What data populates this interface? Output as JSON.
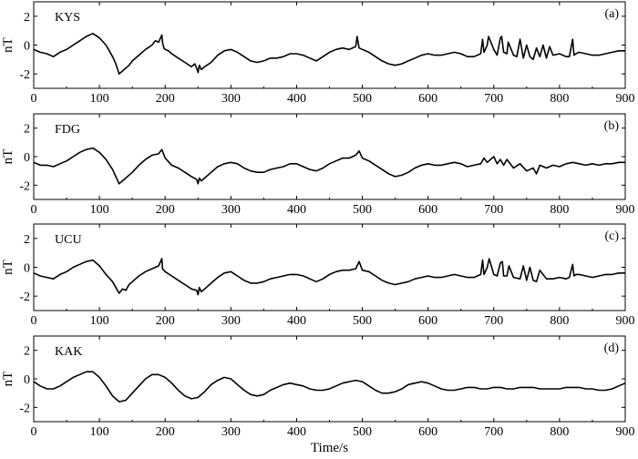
{
  "chart_data": [
    {
      "type": "line",
      "panel_letter": "(a)",
      "station": "KYS",
      "ylabel": "nT",
      "xlabel": "",
      "xlim": [
        0,
        900
      ],
      "ylim": [
        -3,
        3
      ],
      "xticks": [
        "0",
        "100",
        "200",
        "300",
        "400",
        "500",
        "600",
        "700",
        "800",
        "900"
      ],
      "yticks": [
        "2",
        "0",
        "-2"
      ],
      "series": [
        {
          "x": [
            0,
            10,
            20,
            30,
            40,
            50,
            60,
            70,
            80,
            90,
            100,
            110,
            120,
            125,
            130,
            135,
            140,
            145,
            150,
            160,
            170,
            180,
            185,
            190,
            195,
            196,
            198,
            200,
            205,
            210,
            220,
            230,
            240,
            245,
            248,
            250,
            252,
            255,
            260,
            270,
            280,
            290,
            300,
            310,
            320,
            330,
            340,
            350,
            360,
            370,
            380,
            390,
            400,
            410,
            420,
            430,
            440,
            450,
            460,
            470,
            480,
            490,
            492,
            495,
            500,
            510,
            520,
            530,
            540,
            550,
            560,
            570,
            580,
            590,
            600,
            610,
            620,
            630,
            640,
            650,
            660,
            670,
            680,
            683,
            685,
            690,
            692,
            700,
            705,
            710,
            712,
            715,
            720,
            722,
            730,
            735,
            740,
            745,
            750,
            755,
            760,
            765,
            770,
            775,
            780,
            785,
            790,
            800,
            810,
            815,
            820,
            822,
            825,
            830,
            840,
            850,
            860,
            870,
            880,
            890,
            900
          ],
          "y": [
            -0.3,
            -0.5,
            -0.6,
            -0.8,
            -0.5,
            -0.3,
            0.0,
            0.3,
            0.6,
            0.8,
            0.5,
            0.0,
            -0.8,
            -1.3,
            -2.0,
            -1.8,
            -1.6,
            -1.4,
            -1.1,
            -0.7,
            -0.3,
            0.0,
            0.3,
            0.2,
            0.7,
            0.2,
            -0.2,
            -0.3,
            -0.4,
            -0.6,
            -0.9,
            -1.2,
            -1.5,
            -1.3,
            -1.6,
            -1.9,
            -1.4,
            -1.7,
            -1.5,
            -1.2,
            -0.7,
            -0.4,
            -0.3,
            -0.5,
            -0.8,
            -1.1,
            -1.2,
            -1.1,
            -0.9,
            -0.9,
            -0.8,
            -0.6,
            -0.6,
            -0.7,
            -0.9,
            -1.1,
            -0.8,
            -0.5,
            -0.3,
            -0.2,
            -0.3,
            -0.1,
            0.6,
            -0.2,
            -0.3,
            -0.5,
            -0.8,
            -1.1,
            -1.3,
            -1.4,
            -1.3,
            -1.1,
            -0.9,
            -0.7,
            -0.6,
            -0.7,
            -0.7,
            -0.6,
            -0.5,
            -0.6,
            -0.8,
            -0.8,
            -0.6,
            0.4,
            -0.5,
            0.0,
            0.6,
            -0.3,
            -0.7,
            0.5,
            0.6,
            -0.5,
            -0.6,
            0.2,
            -0.7,
            -0.8,
            0.4,
            -0.9,
            0.0,
            -0.8,
            -1.0,
            -0.2,
            -0.8,
            0.0,
            -0.9,
            -0.1,
            -0.7,
            -0.6,
            -0.8,
            -0.8,
            0.4,
            -0.7,
            -0.6,
            -0.5,
            -0.6,
            -0.7,
            -0.7,
            -0.6,
            -0.5,
            -0.4,
            -0.4
          ]
        }
      ]
    },
    {
      "type": "line",
      "panel_letter": "(b)",
      "station": "FDG",
      "ylabel": "nT",
      "xlabel": "",
      "xlim": [
        0,
        900
      ],
      "ylim": [
        -3,
        3
      ],
      "xticks": [
        "0",
        "100",
        "200",
        "300",
        "400",
        "500",
        "600",
        "700",
        "800",
        "900"
      ],
      "yticks": [
        "2",
        "0",
        "-2"
      ],
      "series": [
        {
          "x": [
            0,
            10,
            20,
            30,
            40,
            50,
            60,
            70,
            80,
            90,
            100,
            110,
            120,
            125,
            130,
            135,
            140,
            150,
            160,
            170,
            180,
            190,
            195,
            200,
            210,
            220,
            230,
            240,
            248,
            250,
            252,
            255,
            260,
            270,
            280,
            290,
            300,
            310,
            320,
            330,
            340,
            350,
            360,
            370,
            380,
            390,
            400,
            410,
            420,
            430,
            440,
            450,
            460,
            470,
            480,
            490,
            495,
            500,
            510,
            520,
            530,
            540,
            550,
            560,
            570,
            580,
            590,
            600,
            610,
            620,
            630,
            640,
            650,
            660,
            670,
            680,
            685,
            690,
            700,
            705,
            710,
            715,
            720,
            730,
            740,
            750,
            760,
            765,
            770,
            780,
            790,
            800,
            810,
            820,
            830,
            840,
            850,
            860,
            870,
            880,
            890,
            900
          ],
          "y": [
            -0.4,
            -0.6,
            -0.6,
            -0.7,
            -0.5,
            -0.3,
            0.0,
            0.3,
            0.5,
            0.6,
            0.3,
            -0.2,
            -0.9,
            -1.4,
            -1.9,
            -1.7,
            -1.5,
            -1.1,
            -0.6,
            -0.2,
            0.1,
            0.2,
            0.5,
            -0.1,
            -0.6,
            -0.8,
            -1.1,
            -1.4,
            -1.6,
            -1.9,
            -1.5,
            -1.7,
            -1.5,
            -1.1,
            -0.7,
            -0.5,
            -0.4,
            -0.5,
            -0.8,
            -1.0,
            -1.1,
            -1.1,
            -0.9,
            -0.8,
            -0.7,
            -0.5,
            -0.5,
            -0.7,
            -0.9,
            -1.0,
            -0.8,
            -0.5,
            -0.3,
            -0.1,
            -0.1,
            0.1,
            0.4,
            -0.1,
            -0.3,
            -0.6,
            -0.9,
            -1.2,
            -1.4,
            -1.3,
            -1.1,
            -0.8,
            -0.6,
            -0.5,
            -0.6,
            -0.6,
            -0.5,
            -0.4,
            -0.5,
            -0.7,
            -0.6,
            -0.5,
            -0.1,
            -0.4,
            0.0,
            -0.5,
            -0.2,
            -0.6,
            -0.2,
            -0.8,
            -0.5,
            -1.0,
            -0.8,
            -1.2,
            -0.6,
            -0.8,
            -0.6,
            -0.7,
            -0.5,
            -0.4,
            -0.5,
            -0.6,
            -0.5,
            -0.6,
            -0.5,
            -0.5,
            -0.4,
            -0.4
          ]
        }
      ]
    },
    {
      "type": "line",
      "panel_letter": "(c)",
      "station": "UCU",
      "ylabel": "nT",
      "xlabel": "",
      "xlim": [
        0,
        900
      ],
      "ylim": [
        -3,
        3
      ],
      "xticks": [
        "0",
        "100",
        "200",
        "300",
        "400",
        "500",
        "600",
        "700",
        "800",
        "900"
      ],
      "yticks": [
        "2",
        "0",
        "-2"
      ],
      "series": [
        {
          "x": [
            0,
            10,
            20,
            30,
            40,
            50,
            60,
            70,
            80,
            90,
            100,
            110,
            120,
            125,
            130,
            135,
            140,
            145,
            150,
            160,
            170,
            180,
            190,
            195,
            196,
            200,
            210,
            220,
            230,
            240,
            248,
            250,
            252,
            255,
            260,
            270,
            280,
            290,
            300,
            310,
            320,
            330,
            340,
            350,
            360,
            370,
            380,
            390,
            400,
            410,
            420,
            430,
            440,
            450,
            460,
            470,
            480,
            490,
            495,
            500,
            510,
            520,
            530,
            540,
            550,
            560,
            570,
            580,
            590,
            600,
            610,
            620,
            630,
            640,
            650,
            660,
            670,
            680,
            683,
            685,
            690,
            693,
            700,
            705,
            710,
            713,
            715,
            720,
            723,
            730,
            740,
            745,
            750,
            755,
            760,
            765,
            770,
            780,
            790,
            800,
            810,
            815,
            820,
            822,
            825,
            830,
            840,
            850,
            860,
            870,
            880,
            890,
            900
          ],
          "y": [
            -0.4,
            -0.6,
            -0.7,
            -0.8,
            -0.5,
            -0.3,
            0.0,
            0.2,
            0.4,
            0.5,
            0.1,
            -0.5,
            -1.0,
            -1.4,
            -1.8,
            -1.5,
            -1.6,
            -1.2,
            -1.0,
            -0.6,
            -0.3,
            -0.1,
            0.1,
            0.6,
            -0.1,
            -0.3,
            -0.6,
            -0.9,
            -1.2,
            -1.5,
            -1.6,
            -1.9,
            -1.4,
            -1.7,
            -1.5,
            -1.1,
            -0.7,
            -0.4,
            -0.3,
            -0.6,
            -0.9,
            -1.1,
            -1.1,
            -1.0,
            -0.8,
            -0.7,
            -0.6,
            -0.5,
            -0.5,
            -0.6,
            -0.8,
            -1.0,
            -0.8,
            -0.5,
            -0.3,
            -0.2,
            -0.2,
            -0.1,
            0.4,
            -0.2,
            -0.3,
            -0.6,
            -0.9,
            -1.1,
            -1.2,
            -1.1,
            -1.0,
            -0.8,
            -0.7,
            -0.6,
            -0.7,
            -0.7,
            -0.6,
            -0.5,
            -0.6,
            -0.7,
            -0.7,
            -0.5,
            0.5,
            -0.5,
            0.0,
            0.6,
            -0.5,
            -0.6,
            0.3,
            0.4,
            -0.6,
            -0.6,
            0.1,
            -0.7,
            -0.8,
            0.1,
            -0.9,
            0.0,
            -0.9,
            -1.0,
            -0.2,
            -0.8,
            -0.8,
            -0.7,
            -0.8,
            -0.7,
            0.2,
            -0.6,
            -0.5,
            -0.5,
            -0.6,
            -0.7,
            -0.6,
            -0.5,
            -0.5,
            -0.4,
            -0.4
          ]
        }
      ]
    },
    {
      "type": "line",
      "panel_letter": "(d)",
      "station": "KAK",
      "ylabel": "nT",
      "xlabel": "Time/s",
      "xlim": [
        0,
        900
      ],
      "ylim": [
        -3,
        3
      ],
      "xticks": [
        "0",
        "100",
        "200",
        "300",
        "400",
        "500",
        "600",
        "700",
        "800",
        "900"
      ],
      "yticks": [
        "2",
        "0",
        "-2"
      ],
      "series": [
        {
          "x": [
            0,
            10,
            20,
            30,
            40,
            50,
            60,
            70,
            80,
            90,
            100,
            110,
            120,
            130,
            140,
            150,
            160,
            170,
            180,
            190,
            200,
            210,
            220,
            230,
            240,
            250,
            260,
            270,
            280,
            290,
            300,
            310,
            320,
            330,
            340,
            350,
            360,
            370,
            380,
            390,
            400,
            410,
            420,
            430,
            440,
            450,
            460,
            470,
            480,
            490,
            500,
            510,
            520,
            530,
            540,
            550,
            560,
            570,
            580,
            590,
            600,
            610,
            620,
            630,
            640,
            650,
            660,
            670,
            680,
            690,
            700,
            710,
            720,
            730,
            740,
            750,
            760,
            770,
            780,
            790,
            800,
            810,
            820,
            830,
            840,
            850,
            860,
            870,
            880,
            890,
            900
          ],
          "y": [
            -0.2,
            -0.5,
            -0.7,
            -0.7,
            -0.5,
            -0.2,
            0.1,
            0.3,
            0.5,
            0.5,
            0.1,
            -0.5,
            -1.2,
            -1.6,
            -1.5,
            -1.0,
            -0.5,
            0.0,
            0.3,
            0.3,
            0.1,
            -0.3,
            -0.8,
            -1.2,
            -1.4,
            -1.3,
            -0.9,
            -0.4,
            -0.1,
            0.1,
            0.0,
            -0.4,
            -0.8,
            -1.1,
            -1.2,
            -1.1,
            -0.8,
            -0.6,
            -0.4,
            -0.3,
            -0.4,
            -0.5,
            -0.7,
            -0.8,
            -0.8,
            -0.7,
            -0.5,
            -0.3,
            -0.2,
            -0.1,
            -0.2,
            -0.5,
            -0.8,
            -1.0,
            -1.0,
            -0.9,
            -0.7,
            -0.4,
            -0.3,
            -0.2,
            -0.3,
            -0.5,
            -0.7,
            -0.8,
            -0.8,
            -0.7,
            -0.6,
            -0.6,
            -0.7,
            -0.7,
            -0.6,
            -0.6,
            -0.7,
            -0.7,
            -0.6,
            -0.6,
            -0.6,
            -0.7,
            -0.7,
            -0.7,
            -0.7,
            -0.6,
            -0.6,
            -0.6,
            -0.7,
            -0.7,
            -0.8,
            -0.8,
            -0.7,
            -0.5,
            -0.3
          ]
        }
      ]
    }
  ]
}
